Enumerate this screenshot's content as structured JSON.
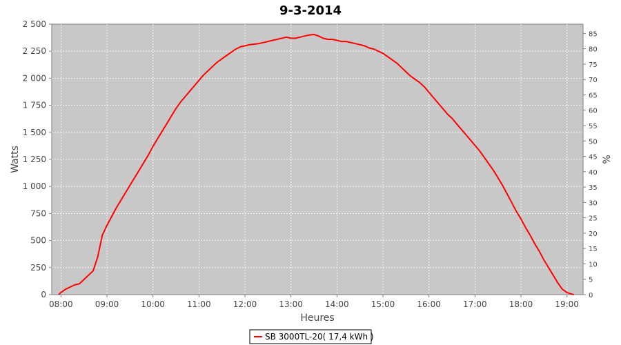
{
  "chart_data": {
    "type": "line",
    "title": "9-3-2014",
    "xlabel": "Heures",
    "ylabel": "Watts",
    "y2label": "%",
    "xlim": [
      7.8,
      19.35
    ],
    "ylim": [
      0,
      2500
    ],
    "y2lim": [
      0,
      88
    ],
    "x_ticks": [
      "08:00",
      "09:00",
      "10:00",
      "11:00",
      "12:00",
      "13:00",
      "14:00",
      "15:00",
      "16:00",
      "17:00",
      "18:00",
      "19:00"
    ],
    "y_ticks": [
      "0",
      "250",
      "500",
      "750",
      "1 000",
      "1 250",
      "1 500",
      "1 750",
      "2 000",
      "2 250",
      "2 500"
    ],
    "y2_ticks": [
      "0",
      "5",
      "10",
      "15",
      "20",
      "25",
      "30",
      "35",
      "40",
      "45",
      "50",
      "55",
      "60",
      "65",
      "70",
      "75",
      "80",
      "85"
    ],
    "grid": true,
    "legend_position": "bottom",
    "colors": {
      "series": "#ff0000",
      "plot_bg": "#c8c8c8"
    },
    "series": [
      {
        "name": "SB 3000TL-20( 17,4 kWh )",
        "x": [
          7.95,
          8.0,
          8.1,
          8.2,
          8.3,
          8.4,
          8.5,
          8.6,
          8.7,
          8.8,
          8.9,
          9.0,
          9.1,
          9.2,
          9.3,
          9.4,
          9.5,
          9.6,
          9.7,
          9.8,
          9.9,
          10.0,
          10.1,
          10.2,
          10.3,
          10.4,
          10.5,
          10.6,
          10.7,
          10.8,
          10.9,
          11.0,
          11.1,
          11.2,
          11.3,
          11.4,
          11.5,
          11.6,
          11.7,
          11.8,
          11.9,
          12.0,
          12.1,
          12.2,
          12.3,
          12.4,
          12.5,
          12.6,
          12.7,
          12.8,
          12.9,
          13.0,
          13.1,
          13.2,
          13.3,
          13.4,
          13.5,
          13.6,
          13.7,
          13.8,
          13.9,
          14.0,
          14.1,
          14.2,
          14.3,
          14.4,
          14.5,
          14.6,
          14.7,
          14.8,
          14.9,
          15.0,
          15.1,
          15.2,
          15.3,
          15.4,
          15.5,
          15.6,
          15.7,
          15.8,
          15.9,
          16.0,
          16.1,
          16.2,
          16.3,
          16.4,
          16.5,
          16.6,
          16.7,
          16.8,
          16.9,
          17.0,
          17.1,
          17.2,
          17.3,
          17.4,
          17.5,
          17.6,
          17.7,
          17.8,
          17.9,
          18.0,
          18.1,
          18.2,
          18.3,
          18.4,
          18.5,
          18.6,
          18.7,
          18.8,
          18.9,
          19.0,
          19.1,
          19.15
        ],
        "y": [
          0,
          20,
          50,
          70,
          90,
          100,
          140,
          180,
          220,
          350,
          550,
          640,
          720,
          800,
          870,
          940,
          1010,
          1080,
          1150,
          1220,
          1290,
          1370,
          1440,
          1510,
          1580,
          1650,
          1720,
          1780,
          1830,
          1880,
          1930,
          1980,
          2030,
          2070,
          2110,
          2150,
          2180,
          2210,
          2240,
          2270,
          2290,
          2300,
          2310,
          2315,
          2320,
          2330,
          2340,
          2350,
          2360,
          2370,
          2380,
          2370,
          2370,
          2380,
          2390,
          2400,
          2405,
          2390,
          2370,
          2360,
          2360,
          2350,
          2340,
          2340,
          2330,
          2320,
          2310,
          2300,
          2280,
          2270,
          2250,
          2230,
          2200,
          2170,
          2140,
          2100,
          2060,
          2020,
          1990,
          1960,
          1920,
          1870,
          1820,
          1770,
          1720,
          1670,
          1630,
          1580,
          1530,
          1480,
          1430,
          1380,
          1330,
          1270,
          1210,
          1150,
          1080,
          1010,
          930,
          850,
          770,
          700,
          620,
          550,
          470,
          400,
          320,
          250,
          180,
          110,
          50,
          20,
          5,
          0
        ]
      }
    ]
  }
}
